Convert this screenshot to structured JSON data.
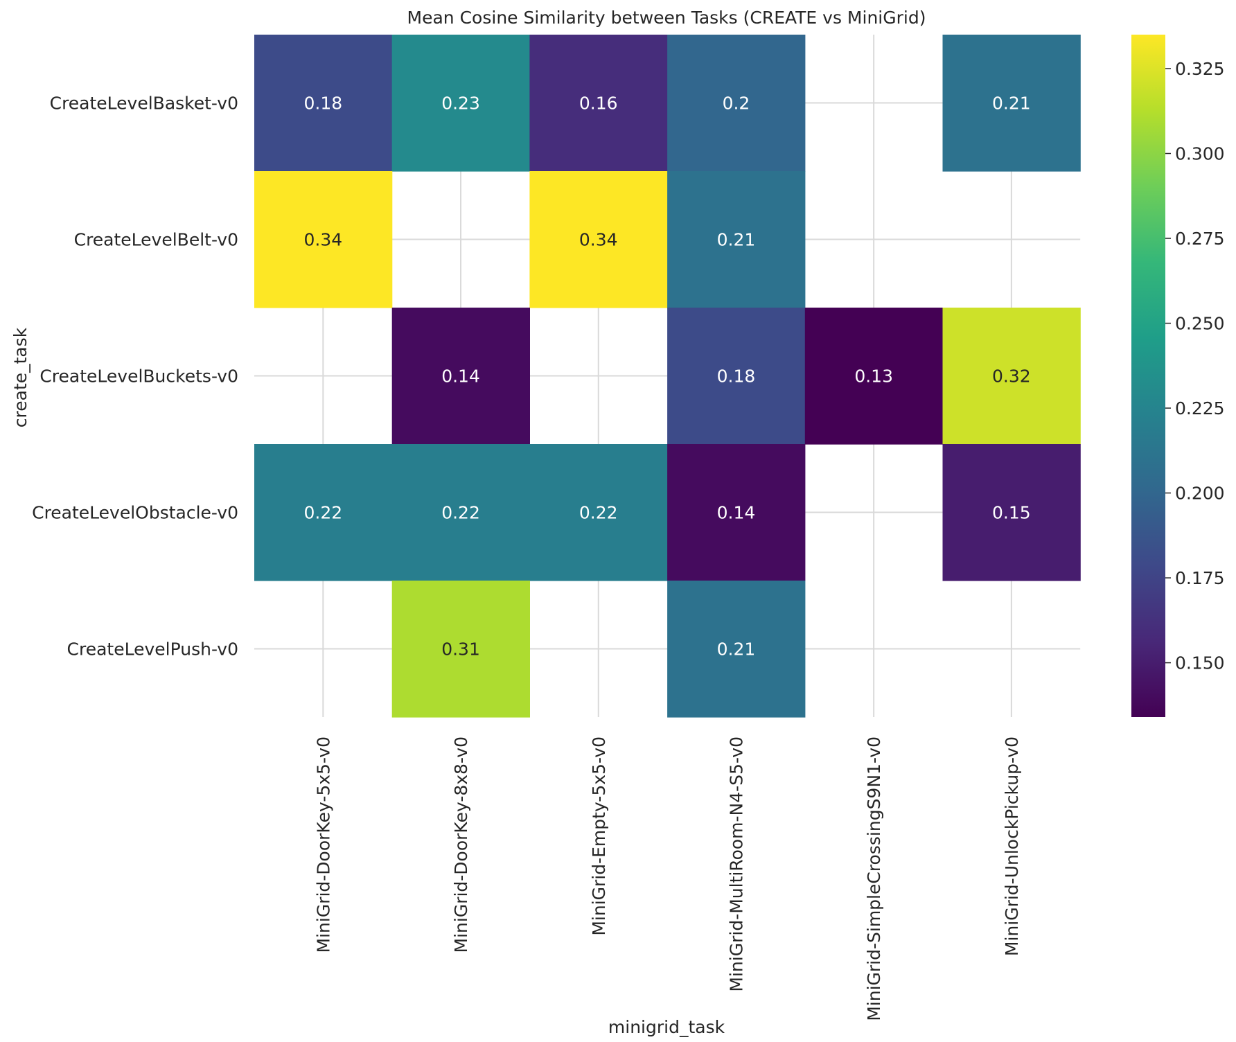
{
  "chart_data": {
    "type": "heatmap",
    "title": "Mean Cosine Similarity between Tasks (CREATE vs MiniGrid)",
    "xlabel": "minigrid_task",
    "ylabel": "create_task",
    "x_categories": [
      "MiniGrid-DoorKey-5x5-v0",
      "MiniGrid-DoorKey-8x8-v0",
      "MiniGrid-Empty-5x5-v0",
      "MiniGrid-MultiRoom-N4-S5-v0",
      "MiniGrid-SimpleCrossingS9N1-v0",
      "MiniGrid-UnlockPickup-v0"
    ],
    "y_categories": [
      "CreateLevelBasket-v0",
      "CreateLevelBelt-v0",
      "CreateLevelBuckets-v0",
      "CreateLevelObstacle-v0",
      "CreateLevelPush-v0"
    ],
    "values": [
      [
        0.18,
        0.23,
        0.16,
        0.2,
        null,
        0.21
      ],
      [
        0.34,
        null,
        0.34,
        0.21,
        null,
        null
      ],
      [
        null,
        0.14,
        null,
        0.18,
        0.13,
        0.32
      ],
      [
        0.22,
        0.22,
        0.22,
        0.14,
        null,
        0.15
      ],
      [
        null,
        0.31,
        null,
        0.21,
        null,
        null
      ]
    ],
    "labels": [
      [
        "0.18",
        "0.23",
        "0.16",
        "0.2",
        "",
        "0.21"
      ],
      [
        "0.34",
        "",
        "0.34",
        "0.21",
        "",
        ""
      ],
      [
        "",
        "0.14",
        "",
        "0.18",
        "0.13",
        "0.32"
      ],
      [
        "0.22",
        "0.22",
        "0.22",
        "0.14",
        "",
        "0.15"
      ],
      [
        "",
        "0.31",
        "",
        "0.21",
        "",
        ""
      ]
    ],
    "colormap": "viridis",
    "colorbar": {
      "range": [
        0.134,
        0.335
      ],
      "ticks": [
        0.15,
        0.175,
        0.2,
        0.225,
        0.25,
        0.275,
        0.3,
        0.325
      ],
      "tick_labels": [
        "0.150",
        "0.175",
        "0.200",
        "0.225",
        "0.250",
        "0.275",
        "0.300",
        "0.325"
      ]
    },
    "grid": true,
    "missing_cells": "blank"
  }
}
